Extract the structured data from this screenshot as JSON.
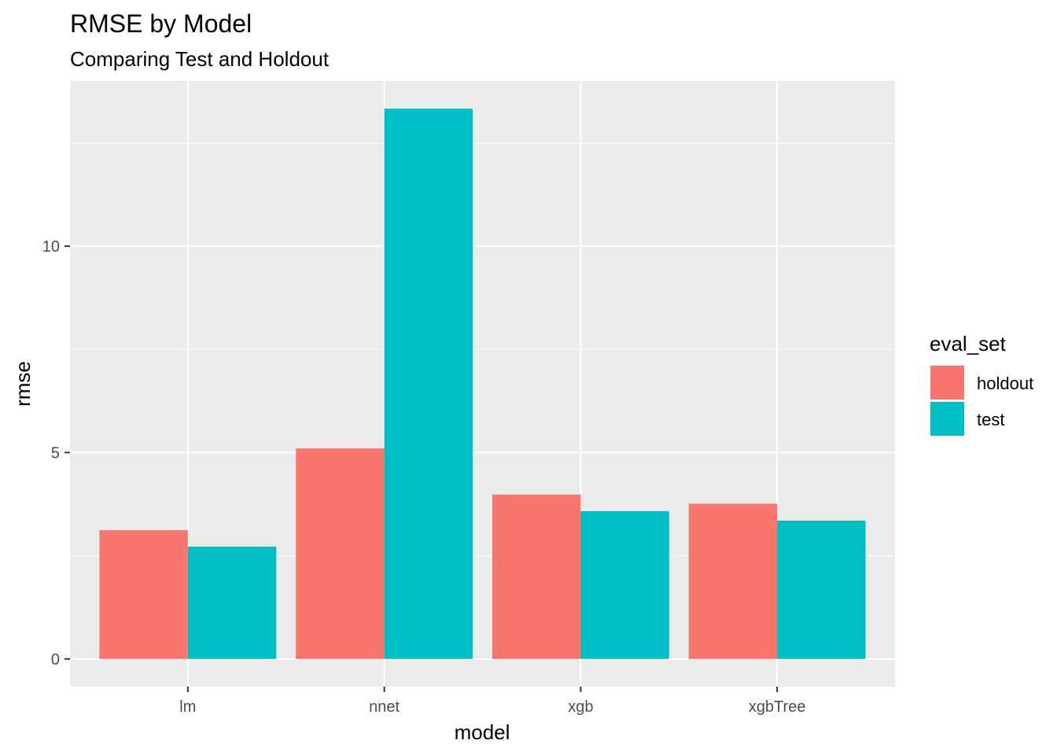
{
  "chart_data": {
    "type": "bar",
    "title": "RMSE by Model",
    "subtitle": "Comparing Test and Holdout",
    "xlabel": "model",
    "ylabel": "rmse",
    "categories": [
      "lm",
      "nnet",
      "xgb",
      "xgbTree"
    ],
    "series": [
      {
        "name": "holdout",
        "color": "#F8766D",
        "values": [
          3.12,
          5.1,
          3.98,
          3.76
        ]
      },
      {
        "name": "test",
        "color": "#00BFC4",
        "values": [
          2.72,
          13.33,
          3.58,
          3.35
        ]
      }
    ],
    "ylim": [
      -0.67,
      14.0
    ],
    "yticks": [
      0,
      5,
      10
    ],
    "legend": {
      "title": "eval_set",
      "position": "right"
    },
    "grid": true,
    "panel_background": "#EBEBEB"
  }
}
